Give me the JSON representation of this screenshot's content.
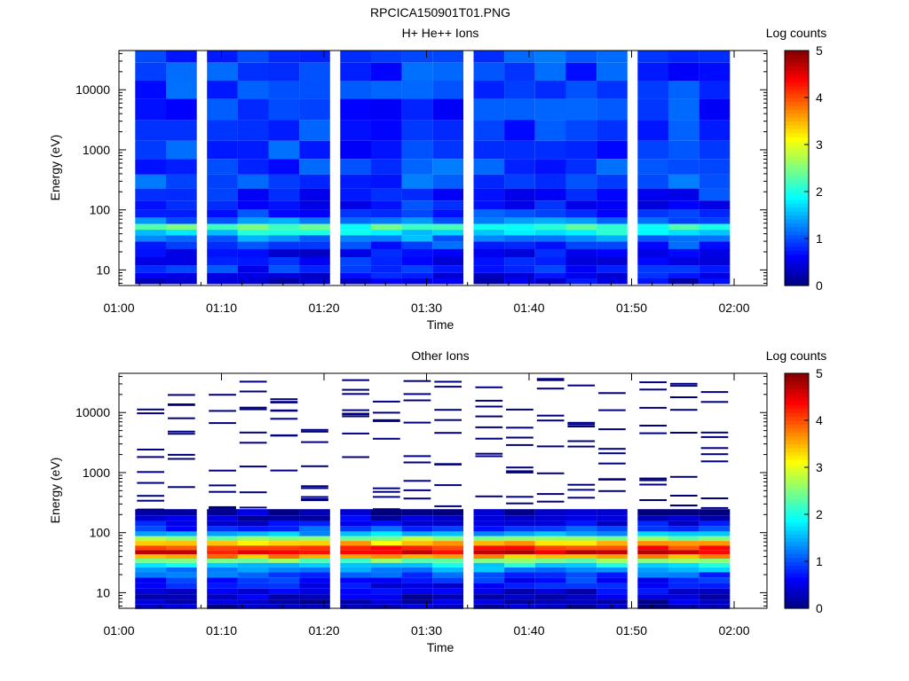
{
  "figure": {
    "title": "RPCICA150901T01.PNG"
  },
  "colormap": [
    "#00007f",
    "#0000ff",
    "#007fff",
    "#00ffff",
    "#7fff7f",
    "#ffff00",
    "#ff7f00",
    "#ff0000",
    "#7f0000"
  ],
  "chart_data": [
    {
      "type": "heatmap",
      "title": "H+ He++ Ions",
      "xlabel": "Time",
      "ylabel": "Energy (eV)",
      "yscale": "log",
      "ylim": [
        5.5,
        45000
      ],
      "x_ticks": [
        "01:00",
        "01:10",
        "01:20",
        "01:30",
        "01:40",
        "01:50",
        "02:00"
      ],
      "y_ticks": [
        "10",
        "100",
        "1000",
        "10000"
      ],
      "colorbar": {
        "label": "Log counts",
        "ticks": [
          "0",
          "1",
          "2",
          "3",
          "4",
          "5"
        ],
        "range": [
          0,
          5
        ]
      },
      "time_bins": [
        "01:03",
        "01:06",
        "01:10",
        "01:13",
        "01:16",
        "01:19",
        "01:23",
        "01:26",
        "01:29",
        "01:32",
        "01:36",
        "01:39",
        "01:42",
        "01:45",
        "01:48",
        "01:52",
        "01:55",
        "01:58"
      ],
      "energy_levels": [
        {
          "e": 40000,
          "v": 1.0
        },
        {
          "e": 20000,
          "v": 0.9
        },
        {
          "e": 10000,
          "v": 0.9
        },
        {
          "e": 5000,
          "v": 0.85
        },
        {
          "e": 2000,
          "v": 0.9
        },
        {
          "e": 1000,
          "v": 0.9
        },
        {
          "e": 500,
          "v": 0.95
        },
        {
          "e": 300,
          "v": 1.0
        },
        {
          "e": 170,
          "v": 0.8
        },
        {
          "e": 120,
          "v": 0.75
        },
        {
          "e": 85,
          "v": 0.9
        },
        {
          "e": 65,
          "v": 1.2
        },
        {
          "e": 52,
          "v": 2.2
        },
        {
          "e": 42,
          "v": 1.8
        },
        {
          "e": 34,
          "v": 1.3
        },
        {
          "e": 26,
          "v": 0.9
        },
        {
          "e": 19,
          "v": 0.6
        },
        {
          "e": 14,
          "v": 0.7
        },
        {
          "e": 10,
          "v": 0.8
        },
        {
          "e": 8,
          "v": 0.6
        },
        {
          "e": 6.5,
          "v": 0.5
        }
      ]
    },
    {
      "type": "heatmap",
      "title": "Other Ions",
      "xlabel": "Time",
      "ylabel": "Energy (eV)",
      "yscale": "log",
      "ylim": [
        5.5,
        45000
      ],
      "x_ticks": [
        "01:00",
        "01:10",
        "01:20",
        "01:30",
        "01:40",
        "01:50",
        "02:00"
      ],
      "y_ticks": [
        "10",
        "100",
        "1000",
        "10000"
      ],
      "colorbar": {
        "label": "Log counts",
        "ticks": [
          "0",
          "1",
          "2",
          "3",
          "4",
          "5"
        ],
        "range": [
          0,
          5
        ]
      },
      "time_bins": [
        "01:03",
        "01:06",
        "01:10",
        "01:13",
        "01:16",
        "01:19",
        "01:23",
        "01:26",
        "01:29",
        "01:32",
        "01:36",
        "01:39",
        "01:42",
        "01:45",
        "01:48",
        "01:52",
        "01:55",
        "01:58"
      ],
      "energy_levels": [
        {
          "e": 220,
          "v": 0.2
        },
        {
          "e": 170,
          "v": 0.4
        },
        {
          "e": 140,
          "v": 0.6
        },
        {
          "e": 115,
          "v": 0.9
        },
        {
          "e": 95,
          "v": 1.5
        },
        {
          "e": 80,
          "v": 2.6
        },
        {
          "e": 66,
          "v": 3.4
        },
        {
          "e": 56,
          "v": 4.2
        },
        {
          "e": 47,
          "v": 4.5
        },
        {
          "e": 40,
          "v": 3.6
        },
        {
          "e": 34,
          "v": 2.4
        },
        {
          "e": 29,
          "v": 1.8
        },
        {
          "e": 24,
          "v": 1.4
        },
        {
          "e": 20,
          "v": 1.0
        },
        {
          "e": 16,
          "v": 0.8
        },
        {
          "e": 13,
          "v": 0.6
        },
        {
          "e": 10.5,
          "v": 0.5
        },
        {
          "e": 8.5,
          "v": 0.4
        },
        {
          "e": 7,
          "v": 0.3
        },
        {
          "e": 6,
          "v": 0.25
        }
      ]
    }
  ]
}
